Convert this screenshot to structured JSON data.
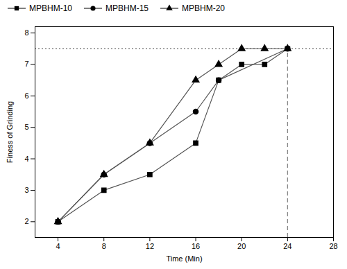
{
  "chart_data": {
    "type": "line",
    "xlabel": "Time (Min)",
    "ylabel": "Finess of Grinding",
    "series": [
      {
        "name": "MPBHM-10",
        "color": "#555555",
        "marker": "square",
        "x": [
          4,
          8,
          12,
          16,
          18,
          20,
          22,
          24
        ],
        "values": [
          2.0,
          3.0,
          3.5,
          4.5,
          6.5,
          7.0,
          7.0,
          7.5
        ]
      },
      {
        "name": "MPBHM-15",
        "color": "#555555",
        "marker": "circle",
        "x": [
          4,
          8,
          12,
          16,
          18,
          24
        ],
        "values": [
          2.0,
          3.5,
          4.5,
          5.5,
          6.5,
          7.5
        ]
      },
      {
        "name": "MPBHM-20",
        "color": "#555555",
        "marker": "triangle",
        "x": [
          4,
          8,
          12,
          16,
          18,
          20,
          22,
          24
        ],
        "values": [
          2.0,
          3.5,
          4.5,
          6.5,
          7.0,
          7.5,
          7.5,
          7.5
        ]
      }
    ],
    "color": "black",
    "hline": 7.5,
    "vline": 24,
    "xlim": [
      2,
      28
    ],
    "ylim": [
      1.5,
      8.2
    ],
    "xticks": [
      4,
      8,
      12,
      16,
      20,
      24,
      28
    ],
    "yticks": [
      2,
      3,
      4,
      5,
      6,
      7,
      8
    ],
    "grid": false,
    "legend": "upper left"
  }
}
